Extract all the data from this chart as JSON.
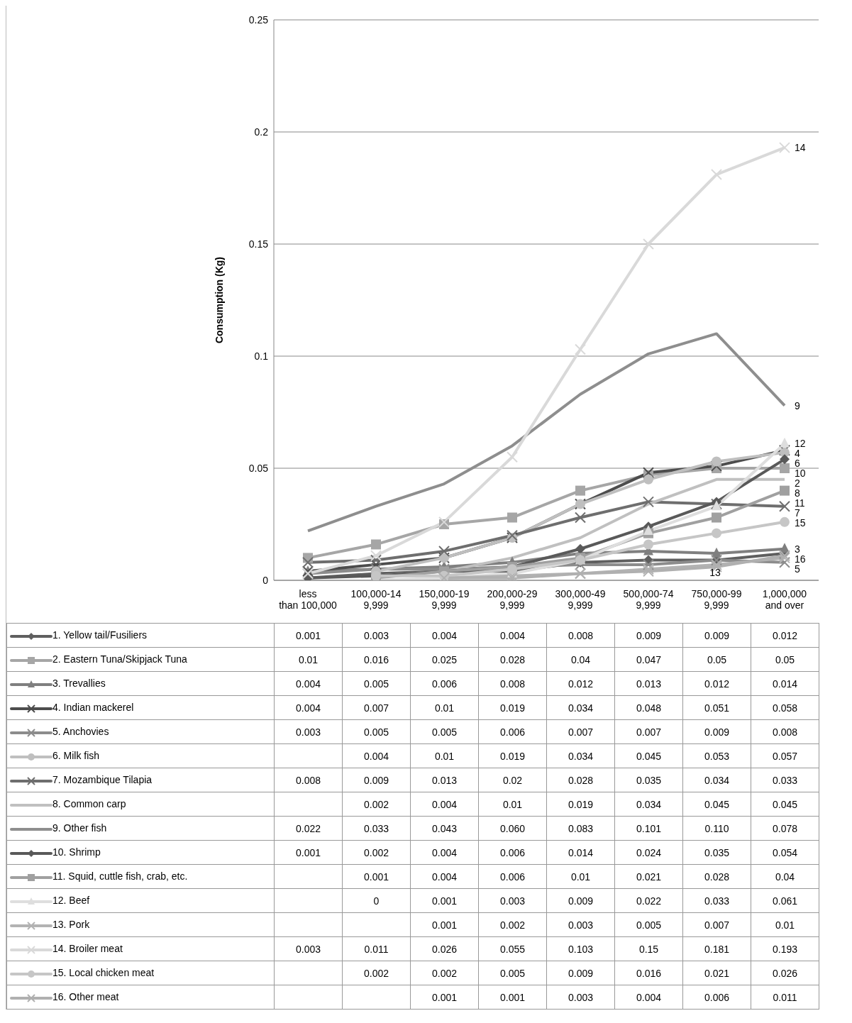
{
  "chart_data": {
    "type": "line",
    "ylabel": "Consumption (Kg)",
    "categories": [
      "less than 100,000",
      "100,000-149,999",
      "150,000-199,999",
      "200,000-299,999",
      "300,000-499,999",
      "500,000-749,999",
      "750,000-999,999",
      "1,000,000 and over"
    ],
    "ylim": [
      0,
      0.25
    ],
    "yticks": [
      0,
      0.05,
      0.1,
      0.15,
      0.2,
      0.25
    ],
    "grid": "y",
    "legend": "bottom",
    "series": [
      {
        "name": "1. Yellow tail/Fusiliers",
        "color": "#5f5f5f",
        "marker": "diamond",
        "values": [
          0.001,
          0.003,
          0.004,
          0.004,
          0.008,
          0.009,
          0.009,
          0.012
        ],
        "value_labels": [
          "0.001",
          "0.003",
          "0.004",
          "0.004",
          "0.008",
          "0.009",
          "0.009",
          "0.012"
        ]
      },
      {
        "name": "2. Eastern Tuna/Skipjack Tuna",
        "color": "#a6a6a6",
        "marker": "square",
        "values": [
          0.01,
          0.016,
          0.025,
          0.028,
          0.04,
          0.047,
          0.05,
          0.05
        ],
        "value_labels": [
          "0.01",
          "0.016",
          "0.025",
          "0.028",
          "0.04",
          "0.047",
          "0.05",
          "0.05"
        ]
      },
      {
        "name": "3. Trevallies",
        "color": "#7f7f7f",
        "marker": "triangle",
        "values": [
          0.004,
          0.005,
          0.006,
          0.008,
          0.012,
          0.013,
          0.012,
          0.014
        ],
        "value_labels": [
          "0.004",
          "0.005",
          "0.006",
          "0.008",
          "0.012",
          "0.013",
          "0.012",
          "0.014"
        ]
      },
      {
        "name": "4. Indian mackerel",
        "color": "#4d4d4d",
        "marker": "cross",
        "values": [
          0.004,
          0.007,
          0.01,
          0.019,
          0.034,
          0.048,
          0.051,
          0.058
        ],
        "value_labels": [
          "0.004",
          "0.007",
          "0.01",
          "0.019",
          "0.034",
          "0.048",
          "0.051",
          "0.058"
        ]
      },
      {
        "name": "5. Anchovies",
        "color": "#8c8c8c",
        "marker": "cross",
        "values": [
          0.003,
          0.005,
          0.005,
          0.006,
          0.007,
          0.007,
          0.009,
          0.008
        ],
        "value_labels": [
          "0.003",
          "0.005",
          "0.005",
          "0.006",
          "0.007",
          "0.007",
          "0.009",
          "0.008"
        ]
      },
      {
        "name": "6. Milk fish",
        "color": "#bfbfbf",
        "marker": "circle",
        "values": [
          null,
          0.004,
          0.01,
          0.019,
          0.034,
          0.045,
          0.053,
          0.057
        ],
        "value_labels": [
          null,
          "0.004",
          "0.01",
          "0.019",
          "0.034",
          "0.045",
          "0.053",
          "0.057"
        ]
      },
      {
        "name": "7. Mozambique Tilapia",
        "color": "#6e6e6e",
        "marker": "cross",
        "values": [
          0.008,
          0.009,
          0.013,
          0.02,
          0.028,
          0.035,
          0.034,
          0.033
        ],
        "value_labels": [
          "0.008",
          "0.009",
          "0.013",
          "0.02",
          "0.028",
          "0.035",
          "0.034",
          "0.033"
        ]
      },
      {
        "name": "8. Common carp",
        "color": "#c0c0c0",
        "marker": "none",
        "values": [
          null,
          0.002,
          0.004,
          0.01,
          0.019,
          0.034,
          0.045,
          0.045
        ],
        "value_labels": [
          null,
          "0.002",
          "0.004",
          "0.01",
          "0.019",
          "0.034",
          "0.045",
          "0.045"
        ]
      },
      {
        "name": "9. Other fish",
        "color": "#8e8e8e",
        "marker": "none",
        "values": [
          0.022,
          0.033,
          0.043,
          0.06,
          0.083,
          0.101,
          0.11,
          0.078
        ],
        "value_labels": [
          "0.022",
          "0.033",
          "0.043",
          "0.060",
          "0.083",
          "0.101",
          "0.110",
          "0.078"
        ]
      },
      {
        "name": "10. Shrimp",
        "color": "#595959",
        "marker": "diamond",
        "values": [
          0.001,
          0.002,
          0.004,
          0.006,
          0.014,
          0.024,
          0.035,
          0.054
        ],
        "value_labels": [
          "0.001",
          "0.002",
          "0.004",
          "0.006",
          "0.014",
          "0.024",
          "0.035",
          "0.054"
        ]
      },
      {
        "name": "11. Squid, cuttle fish, crab, etc.",
        "color": "#a0a0a0",
        "marker": "square",
        "values": [
          null,
          0.001,
          0.004,
          0.006,
          0.01,
          0.021,
          0.028,
          0.04
        ],
        "value_labels": [
          null,
          "0.001",
          "0.004",
          "0.006",
          "0.01",
          "0.021",
          "0.028",
          "0.04"
        ]
      },
      {
        "name": "12. Beef",
        "color": "#dedede",
        "marker": "triangle",
        "values": [
          null,
          0,
          0.001,
          0.003,
          0.009,
          0.022,
          0.033,
          0.061
        ],
        "value_labels": [
          null,
          "0",
          "0.001",
          "0.003",
          "0.009",
          "0.022",
          "0.033",
          "0.061"
        ]
      },
      {
        "name": "13. Pork",
        "color": "#b3b3b3",
        "marker": "cross",
        "values": [
          null,
          null,
          0.001,
          0.002,
          0.003,
          0.005,
          0.007,
          0.01
        ],
        "value_labels": [
          null,
          null,
          "0.001",
          "0.002",
          "0.003",
          "0.005",
          "0.007",
          "0.01"
        ]
      },
      {
        "name": "14. Broiler meat",
        "color": "#d9d9d9",
        "marker": "cross",
        "values": [
          0.003,
          0.011,
          0.026,
          0.055,
          0.103,
          0.15,
          0.181,
          0.193
        ],
        "value_labels": [
          "0.003",
          "0.011",
          "0.026",
          "0.055",
          "0.103",
          "0.15",
          "0.181",
          "0.193"
        ]
      },
      {
        "name": "15. Local chicken meat",
        "color": "#c6c6c6",
        "marker": "circle",
        "values": [
          null,
          0.002,
          0.002,
          0.005,
          0.009,
          0.016,
          0.021,
          0.026
        ],
        "value_labels": [
          null,
          "0.002",
          "0.002",
          "0.005",
          "0.009",
          "0.016",
          "0.021",
          "0.026"
        ]
      },
      {
        "name": "16. Other meat",
        "color": "#b0b0b0",
        "marker": "cross",
        "values": [
          null,
          null,
          0.001,
          0.001,
          0.003,
          0.004,
          0.006,
          0.011
        ],
        "value_labels": [
          null,
          null,
          "0.001",
          "0.001",
          "0.003",
          "0.004",
          "0.006",
          "0.011"
        ]
      }
    ],
    "annotations": [
      {
        "text": "14",
        "x": "1,000,000 and over",
        "y": 0.193
      },
      {
        "text": "9",
        "x": "1,000,000 and over",
        "y": 0.078
      },
      {
        "text": "12",
        "x": "1,000,000 and over",
        "y": 0.061
      },
      {
        "text": "4",
        "x": "1,000,000 and over",
        "y": 0.058
      },
      {
        "text": "6",
        "x": "1,000,000 and over",
        "y": 0.057
      },
      {
        "text": "10",
        "x": "1,000,000 and over",
        "y": 0.054
      },
      {
        "text": "2",
        "x": "1,000,000 and over",
        "y": 0.05
      },
      {
        "text": "8",
        "x": "1,000,000 and over",
        "y": 0.045
      },
      {
        "text": "11",
        "x": "1,000,000 and over",
        "y": 0.04
      },
      {
        "text": "7",
        "x": "1,000,000 and over",
        "y": 0.033
      },
      {
        "text": "15",
        "x": "1,000,000 and over",
        "y": 0.026
      },
      {
        "text": "3",
        "x": "1,000,000 and over",
        "y": 0.014
      },
      {
        "text": "16",
        "x": "1,000,000 and over",
        "y": 0.011
      },
      {
        "text": "5",
        "x": "1,000,000 and over",
        "y": 0.008
      },
      {
        "text": "13",
        "x": "750,000-999,999",
        "y": 0.007
      }
    ]
  }
}
